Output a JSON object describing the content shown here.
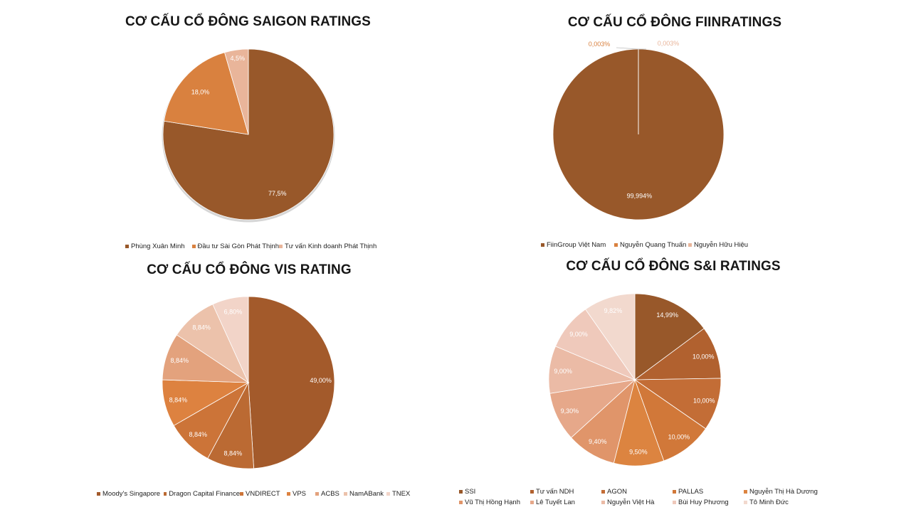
{
  "chart_data": [
    {
      "type": "pie",
      "title": "CƠ CẤU CỔ ĐÔNG SAIGON RATINGS",
      "labels": [
        "Phùng Xuân Minh",
        "Đầu tư Sài Gòn Phát Thịnh",
        "Tư vấn Kinh doanh Phát Thịnh"
      ],
      "values": [
        77.5,
        18.0,
        4.5
      ],
      "value_labels": [
        "77,5%",
        "18,0%",
        "4,5%"
      ],
      "colors": [
        "#98582a",
        "#d9813f",
        "#e9b59a"
      ],
      "legend_position": "bottom"
    },
    {
      "type": "pie",
      "title": "CƠ CẤU CỔ ĐÔNG FIINRATINGS",
      "labels": [
        "FiinGroup Việt Nam",
        "Nguyễn Quang Thuấn",
        "Nguyễn Hữu Hiệu"
      ],
      "values": [
        99.994,
        0.003,
        0.003
      ],
      "value_labels": [
        "99,994%",
        "0,003%",
        "0,003%"
      ],
      "colors": [
        "#98582a",
        "#d9813f",
        "#e9b59a"
      ],
      "legend_position": "bottom"
    },
    {
      "type": "pie",
      "title": "CƠ CẤU CỔ ĐÔNG VIS RATING",
      "labels": [
        "Moody's Singapore",
        "Dragon Capital Finance",
        "VNDIRECT",
        "VPS",
        "ACBS",
        "NamABank",
        "TNEX"
      ],
      "values": [
        49.0,
        8.84,
        8.84,
        8.84,
        8.84,
        8.84,
        6.8
      ],
      "value_labels": [
        "49,00%",
        "8,84%",
        "8,84%",
        "8,84%",
        "8,84%",
        "8,84%",
        "6,80%"
      ],
      "colors": [
        "#a35a2b",
        "#bb6a33",
        "#cc7438",
        "#dd8240",
        "#e3a27d",
        "#ecc2ab",
        "#f2d4c8"
      ],
      "legend_position": "bottom"
    },
    {
      "type": "pie",
      "title": "CƠ CẤU CỔ ĐÔNG S&I RATINGS",
      "labels": [
        "SSI",
        "Tư vấn NDH",
        "AGON",
        "PALLAS",
        "Nguyễn Thị Hà Dương",
        "Vũ Thị Hồng Hạnh",
        "Lê Tuyết Lan",
        "Nguyễn Việt Hà",
        "Bùi Huy Phương",
        "Tô Minh Đức"
      ],
      "values": [
        14.99,
        10.0,
        10.0,
        10.0,
        9.5,
        9.4,
        9.3,
        9.0,
        9.0,
        9.82
      ],
      "value_labels": [
        "14,99%",
        "10,00%",
        "10,00%",
        "10,00%",
        "9,50%",
        "9,40%",
        "9,30%",
        "9,00%",
        "9,00%",
        "9,82%"
      ],
      "colors": [
        "#98582a",
        "#b1612f",
        "#c36d36",
        "#d17839",
        "#dc8440",
        "#e0956a",
        "#e6a88a",
        "#ebbba6",
        "#efc9bb",
        "#f2d9ce"
      ],
      "legend_position": "bottom"
    }
  ]
}
